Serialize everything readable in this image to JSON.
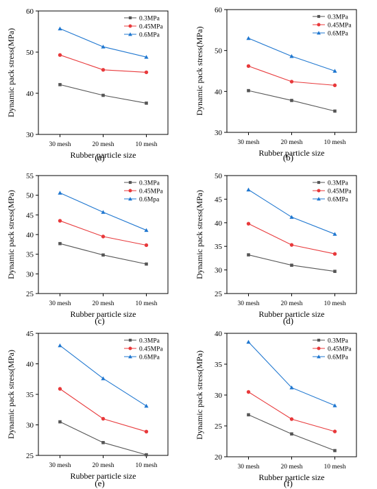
{
  "chart_data": [
    {
      "type": "line",
      "panel_label": "(a)",
      "categories": [
        "30 mesh",
        "20 mesh",
        "10 mesh"
      ],
      "series": [
        {
          "name": "0.3MPa",
          "values": [
            42.1,
            39.5,
            37.6
          ],
          "color": "#555555",
          "marker": "square"
        },
        {
          "name": "0.45MPa",
          "values": [
            49.3,
            45.7,
            45.1
          ],
          "color": "#e8393b",
          "marker": "circle"
        },
        {
          "name": "0.6MPa",
          "values": [
            55.7,
            51.3,
            48.8
          ],
          "color": "#1f77d0",
          "marker": "triangle"
        }
      ],
      "xlabel": "Rubber particle size",
      "ylabel": "Dynamic pack stress(MPa)",
      "ylim": [
        30,
        60
      ],
      "yticks": [
        "30",
        "40",
        "50",
        "60"
      ],
      "grid": false,
      "legend_position": "top-right"
    },
    {
      "type": "line",
      "panel_label": "(b)",
      "categories": [
        "30 mesh",
        "20 mesh",
        "10 mesh"
      ],
      "series": [
        {
          "name": "0.3MPa",
          "values": [
            40.2,
            37.8,
            35.2
          ],
          "color": "#555555",
          "marker": "square"
        },
        {
          "name": "0.45MPa",
          "values": [
            46.2,
            42.4,
            41.5
          ],
          "color": "#e8393b",
          "marker": "circle"
        },
        {
          "name": "0.6MPa",
          "values": [
            53.0,
            48.6,
            45.0
          ],
          "color": "#1f77d0",
          "marker": "triangle"
        }
      ],
      "xlabel": "Rubber particle size",
      "ylabel": "Dynamic pack stress(MPa)",
      "ylim": [
        30,
        60
      ],
      "yticks": [
        "30",
        "40",
        "50",
        "60"
      ],
      "grid": false,
      "legend_position": "top-right"
    },
    {
      "type": "line",
      "panel_label": "(c)",
      "categories": [
        "30 mesh",
        "20 mesh",
        "10 mesh"
      ],
      "series": [
        {
          "name": "0.3MPa",
          "values": [
            37.7,
            34.8,
            32.5
          ],
          "color": "#555555",
          "marker": "square"
        },
        {
          "name": "0.45MPa",
          "values": [
            43.5,
            39.5,
            37.3
          ],
          "color": "#e8393b",
          "marker": "circle"
        },
        {
          "name": "0.6Mpa",
          "values": [
            50.6,
            45.7,
            41.1
          ],
          "color": "#1f77d0",
          "marker": "triangle"
        }
      ],
      "xlabel": "Rubber particle size",
      "ylabel": "Dynamic pack stress(MPa)",
      "ylim": [
        25,
        55
      ],
      "yticks": [
        "25",
        "30",
        "35",
        "40",
        "45",
        "50",
        "55"
      ],
      "grid": false,
      "legend_position": "top-right"
    },
    {
      "type": "line",
      "panel_label": "(d)",
      "categories": [
        "30 mesh",
        "20 mesh",
        "10 mesh"
      ],
      "series": [
        {
          "name": "0.3MPa",
          "values": [
            33.2,
            31.0,
            29.7
          ],
          "color": "#555555",
          "marker": "square"
        },
        {
          "name": "0.45MPa",
          "values": [
            39.8,
            35.3,
            33.4
          ],
          "color": "#e8393b",
          "marker": "circle"
        },
        {
          "name": "0.6MPa",
          "values": [
            47.0,
            41.2,
            37.6
          ],
          "color": "#1f77d0",
          "marker": "triangle"
        }
      ],
      "xlabel": "Rubber particle size",
      "ylabel": "Dynamic pack stress(MPa)",
      "ylim": [
        25,
        50
      ],
      "yticks": [
        "25",
        "30",
        "35",
        "40",
        "45",
        "50"
      ],
      "grid": false,
      "legend_position": "top-right"
    },
    {
      "type": "line",
      "panel_label": "(e)",
      "categories": [
        "30 mesh",
        "20 mesh",
        "10 mesh"
      ],
      "series": [
        {
          "name": "0.3MPa",
          "values": [
            30.5,
            27.1,
            25.1
          ],
          "color": "#555555",
          "marker": "square"
        },
        {
          "name": "0.45MPa",
          "values": [
            35.9,
            31.0,
            28.9
          ],
          "color": "#e8393b",
          "marker": "circle"
        },
        {
          "name": "0.6MPa",
          "values": [
            43.0,
            37.6,
            33.1
          ],
          "color": "#1f77d0",
          "marker": "triangle"
        }
      ],
      "xlabel": "Rubber particle size",
      "ylabel": "Dynamic pack stress(MPa)",
      "ylim": [
        25,
        45
      ],
      "yticks": [
        "25",
        "30",
        "35",
        "40",
        "45"
      ],
      "grid": false,
      "legend_position": "top-right"
    },
    {
      "type": "line",
      "panel_label": "(f)",
      "categories": [
        "30 mesh",
        "20 mesh",
        "10 mesh"
      ],
      "series": [
        {
          "name": "0.3MPa",
          "values": [
            26.8,
            23.7,
            21.0
          ],
          "color": "#555555",
          "marker": "square"
        },
        {
          "name": "0.45MPa",
          "values": [
            30.5,
            26.1,
            24.1
          ],
          "color": "#e8393b",
          "marker": "circle"
        },
        {
          "name": "0.6MPa",
          "values": [
            38.6,
            31.2,
            28.3
          ],
          "color": "#1f77d0",
          "marker": "triangle"
        }
      ],
      "xlabel": "Rubber particle size",
      "ylabel": "Dynamic pack stress(MPa)",
      "ylim": [
        20,
        40
      ],
      "yticks": [
        "20",
        "25",
        "30",
        "35",
        "40"
      ],
      "grid": false,
      "legend_position": "top-right"
    }
  ]
}
